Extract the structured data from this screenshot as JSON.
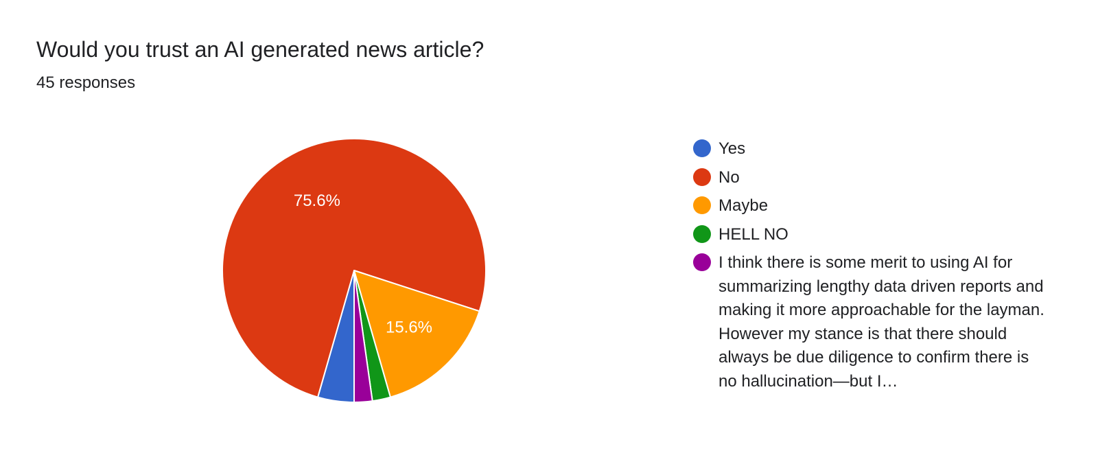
{
  "header": {
    "title": "Would you trust an AI generated news article?",
    "subtitle": "45 responses"
  },
  "chart_data": {
    "type": "pie",
    "total_responses": 45,
    "categories": [
      "Yes",
      "No",
      "Maybe",
      "HELL NO",
      "I think there is some merit to using AI for summarizing lengthy data driven reports and making it more approachable for the layman. However my stance is that there should always be due diligence to confirm there is no hallucination—but I…"
    ],
    "values": [
      2,
      34,
      7,
      1,
      1
    ],
    "percent_labels": [
      "",
      "75.6%",
      "15.6%",
      "",
      ""
    ],
    "colors": [
      "#3366cc",
      "#dc3912",
      "#ff9900",
      "#109618",
      "#990099"
    ],
    "start_angle_deg": 90,
    "direction": "clockwise",
    "legend_position": "right"
  }
}
